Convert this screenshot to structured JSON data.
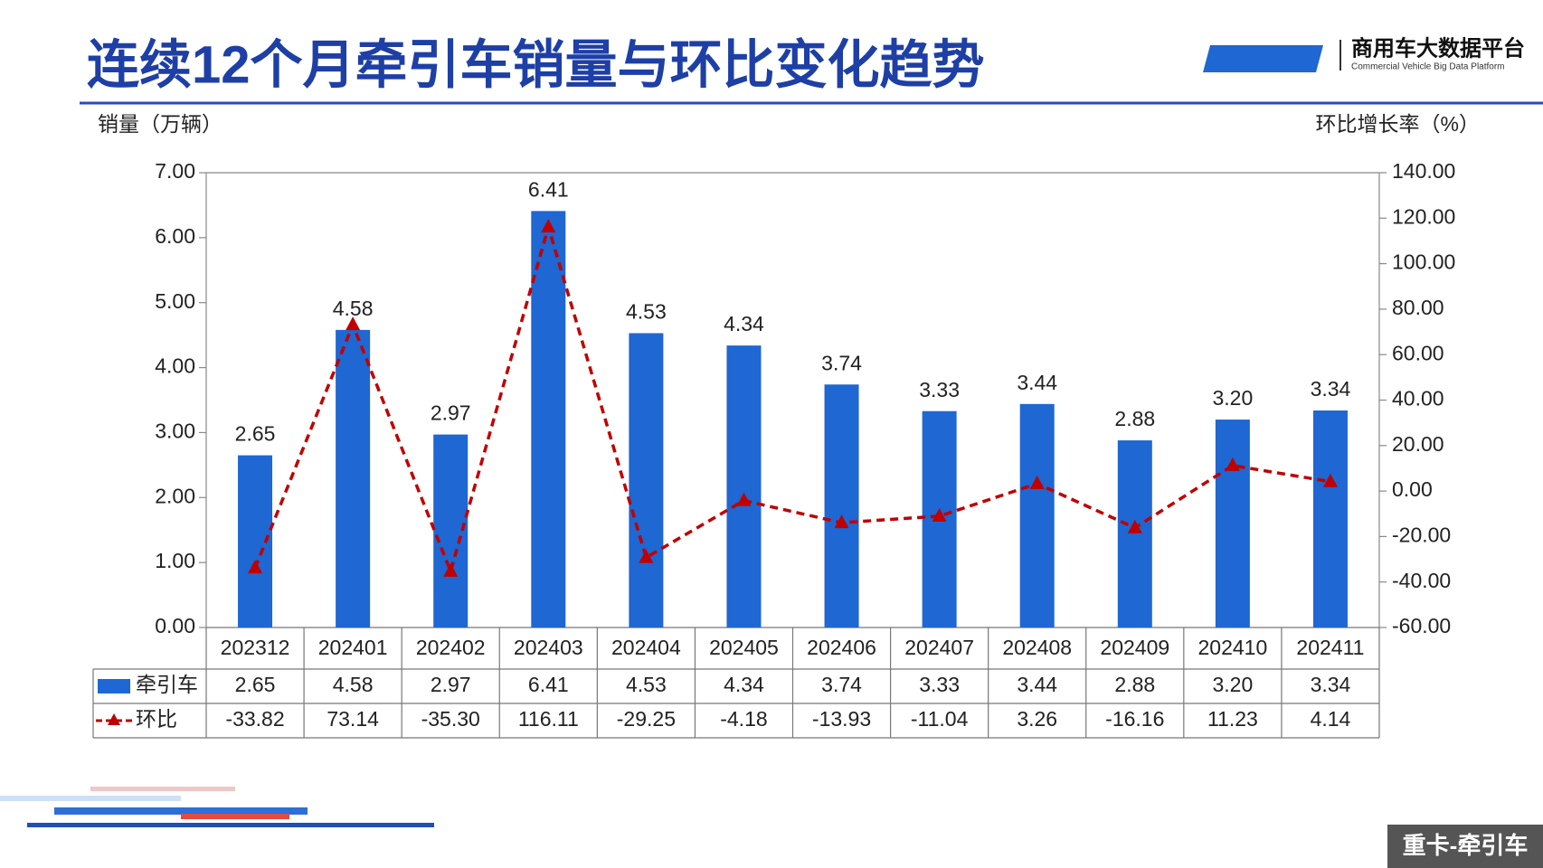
{
  "header": {
    "title": "连续12个月牵引车销量与环比变化趋势",
    "logo_name": "商用车大数据平台",
    "logo_subtitle": "Commercial Vehicle Big Data Platform"
  },
  "footer": {
    "tag": "重卡-牵引车"
  },
  "chart_data": {
    "type": "bar-line",
    "y_label": "销量（万辆）",
    "y2_label": "环比增长率（%）",
    "categories": [
      "202312",
      "202401",
      "202402",
      "202403",
      "202404",
      "202405",
      "202406",
      "202407",
      "202408",
      "202409",
      "202410",
      "202411"
    ],
    "series": [
      {
        "name": "牵引车",
        "type": "bar",
        "color": "#1f67d2",
        "values": [
          2.65,
          4.58,
          2.97,
          6.41,
          4.53,
          4.34,
          3.74,
          3.33,
          3.44,
          2.88,
          3.2,
          3.34
        ],
        "value_labels": [
          "2.65",
          "4.58",
          "2.97",
          "6.41",
          "4.53",
          "4.34",
          "3.74",
          "3.33",
          "3.44",
          "2.88",
          "3.20",
          "3.34"
        ]
      },
      {
        "name": "环比",
        "type": "line",
        "axis": "y2",
        "color": "#c00000",
        "values": [
          -33.82,
          73.14,
          -35.3,
          116.11,
          -29.25,
          -4.18,
          -13.93,
          -11.04,
          3.26,
          -16.16,
          11.23,
          4.14
        ],
        "value_labels": [
          "-33.82",
          "73.14",
          "-35.30",
          "116.11",
          "-29.25",
          "-4.18",
          "-13.93",
          "-11.04",
          "3.26",
          "-16.16",
          "11.23",
          "4.14"
        ]
      }
    ],
    "ylim": [
      0,
      7
    ],
    "yticks": [
      {
        "value": 0,
        "label": "0.00"
      },
      {
        "value": 1,
        "label": "1.00"
      },
      {
        "value": 2,
        "label": "2.00"
      },
      {
        "value": 3,
        "label": "3.00"
      },
      {
        "value": 4,
        "label": "4.00"
      },
      {
        "value": 5,
        "label": "5.00"
      },
      {
        "value": 6,
        "label": "6.00"
      },
      {
        "value": 7,
        "label": "7.00"
      }
    ],
    "y2lim": [
      -60,
      140
    ],
    "y2ticks": [
      {
        "value": -60,
        "label": "-60.00"
      },
      {
        "value": -40,
        "label": "-40.00"
      },
      {
        "value": -20,
        "label": "-20.00"
      },
      {
        "value": 0,
        "label": "0.00"
      },
      {
        "value": 20,
        "label": "20.00"
      },
      {
        "value": 40,
        "label": "40.00"
      },
      {
        "value": 60,
        "label": "60.00"
      },
      {
        "value": 80,
        "label": "80.00"
      },
      {
        "value": 100,
        "label": "100.00"
      },
      {
        "value": 120,
        "label": "120.00"
      },
      {
        "value": 140,
        "label": "140.00"
      }
    ]
  }
}
